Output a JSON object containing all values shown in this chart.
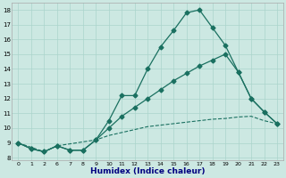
{
  "background_color": "#cce8e2",
  "grid_color": "#aad4cc",
  "line_color": "#1a7060",
  "xlabel": "Humidex (Indice chaleur)",
  "ylim": [
    7.8,
    18.5
  ],
  "yticks": [
    8,
    9,
    10,
    11,
    12,
    13,
    14,
    15,
    16,
    17,
    18
  ],
  "xlabel_color": "#000080",
  "categories": [
    "0",
    "1",
    "2",
    "6",
    "7",
    "8",
    "9",
    "10",
    "11",
    "12",
    "13",
    "14",
    "15",
    "16",
    "17",
    "18",
    "19",
    "20",
    "21",
    "22",
    "23"
  ],
  "line1_y": [
    9.0,
    8.6,
    8.4,
    8.8,
    8.5,
    8.5,
    9.2,
    10.5,
    12.2,
    12.2,
    14.0,
    15.5,
    16.6,
    17.8,
    18.0,
    16.8,
    15.6,
    13.8,
    12.0,
    11.1,
    10.3
  ],
  "line2_y": [
    9.0,
    8.6,
    8.4,
    8.8,
    8.5,
    8.5,
    9.2,
    10.0,
    10.8,
    11.4,
    12.0,
    12.6,
    13.2,
    13.7,
    14.2,
    14.6,
    15.0,
    13.8,
    12.0,
    11.1,
    10.3
  ],
  "line3_y": [
    9.0,
    8.4,
    8.8,
    9.2,
    9.5,
    9.7,
    9.9,
    10.1,
    10.2,
    10.3,
    10.4,
    10.5,
    10.6,
    10.65,
    10.75,
    10.8,
    10.5,
    10.3
  ],
  "line3_x_indices": [
    0,
    2,
    3,
    6,
    7,
    8,
    9,
    10,
    11,
    12,
    13,
    14,
    15,
    16,
    17,
    18,
    19,
    20
  ]
}
